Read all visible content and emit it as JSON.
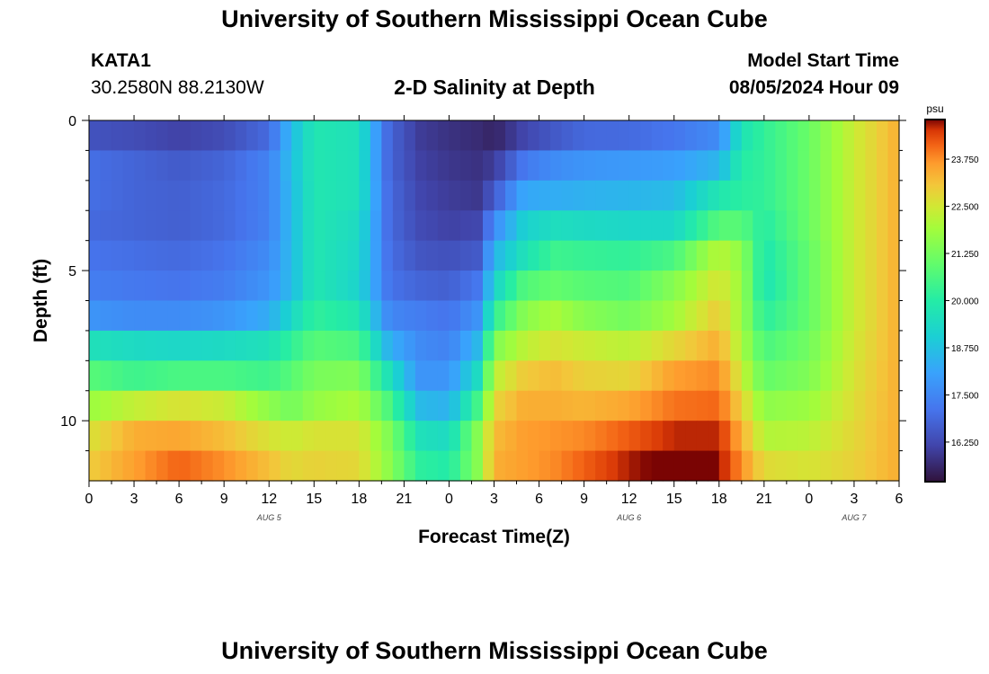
{
  "page": {
    "title": "University of Southern Mississippi Ocean Cube",
    "station": "KATA1",
    "coords": "30.2580N  88.2130W",
    "subtitle": "2-D Salinity at Depth",
    "model_start_label": "Model Start Time",
    "model_start_value": "08/05/2024 Hour 09",
    "bottom_title": "University of Southern Mississippi Ocean Cube"
  },
  "chart_data": {
    "type": "heatmap",
    "title": "2-D Salinity at Depth",
    "xlabel": "Forecast Time(Z)",
    "ylabel": "Depth (ft)",
    "x_tick_labels": [
      "0",
      "3",
      "6",
      "9",
      "12",
      "15",
      "18",
      "21",
      "0",
      "3",
      "6",
      "9",
      "12",
      "15",
      "18",
      "21",
      "0",
      "3",
      "6"
    ],
    "x_range_hours": [
      0,
      54
    ],
    "date_labels": [
      {
        "text": "AUG 5",
        "hour": 12
      },
      {
        "text": "AUG 6",
        "hour": 36
      },
      {
        "text": "AUG 7",
        "hour": 51
      }
    ],
    "y_tick_labels": [
      "0",
      "5",
      "10"
    ],
    "y_ticks": [
      0,
      5,
      10
    ],
    "y_range_ft": [
      0,
      12
    ],
    "colorbar": {
      "unit": "psu",
      "range": [
        15.2,
        24.8
      ],
      "tick_labels": [
        "23.750",
        "22.500",
        "21.250",
        "20.000",
        "18.750",
        "17.500",
        "16.250"
      ],
      "tick_values": [
        23.75,
        22.5,
        21.25,
        20.0,
        18.75,
        17.5,
        16.25
      ]
    },
    "depth_levels_ft": [
      0.5,
      1.5,
      2.5,
      3.5,
      4.5,
      5.5,
      6.5,
      7.5,
      8.5,
      9.5,
      10.5,
      11.5
    ],
    "key_hours": [
      0,
      3,
      6,
      9,
      12,
      13.5,
      15,
      18,
      20,
      22,
      24,
      26,
      27,
      29,
      31,
      33,
      36,
      39,
      42,
      43.5,
      45,
      48,
      51,
      54
    ],
    "salinity_psu_key": [
      [
        16.2,
        16.0,
        15.8,
        16.0,
        16.6,
        18.6,
        19.8,
        19.6,
        16.8,
        16.0,
        15.8,
        15.6,
        15.3,
        15.7,
        16.0,
        16.4,
        16.6,
        17.0,
        17.6,
        19.6,
        20.3,
        21.0,
        22.4,
        23.4
      ],
      [
        16.5,
        16.4,
        16.2,
        16.4,
        17.0,
        18.6,
        19.8,
        19.6,
        16.8,
        16.0,
        15.8,
        15.7,
        15.6,
        16.3,
        16.7,
        17.0,
        17.0,
        17.2,
        17.6,
        19.7,
        20.2,
        21.1,
        22.4,
        23.4
      ],
      [
        17.0,
        16.8,
        16.6,
        16.8,
        17.4,
        18.7,
        19.8,
        19.6,
        16.8,
        16.1,
        15.9,
        15.8,
        16.0,
        17.2,
        17.6,
        17.8,
        17.9,
        18.0,
        18.5,
        20.0,
        20.2,
        21.1,
        22.4,
        23.4
      ],
      [
        17.0,
        16.8,
        16.7,
        16.9,
        17.4,
        18.6,
        19.8,
        19.6,
        16.9,
        16.2,
        16.0,
        15.9,
        16.6,
        18.2,
        18.3,
        18.4,
        18.5,
        18.6,
        19.8,
        20.1,
        20.2,
        21.1,
        22.4,
        23.4
      ],
      [
        16.9,
        16.8,
        16.7,
        16.9,
        17.4,
        18.6,
        19.8,
        19.4,
        16.9,
        16.3,
        16.1,
        16.2,
        17.6,
        19.1,
        19.5,
        19.4,
        19.3,
        19.3,
        20.8,
        20.8,
        20.0,
        21.1,
        22.4,
        23.4
      ],
      [
        17.1,
        17.0,
        16.9,
        17.1,
        17.6,
        18.6,
        19.8,
        19.3,
        17.0,
        16.5,
        16.4,
        16.6,
        18.5,
        19.6,
        20.4,
        20.3,
        20.2,
        20.6,
        22.2,
        21.6,
        19.8,
        21.0,
        22.4,
        23.4
      ],
      [
        17.3,
        17.2,
        17.1,
        17.3,
        17.8,
        18.6,
        19.8,
        19.2,
        17.1,
        16.8,
        16.7,
        17.2,
        19.2,
        20.7,
        21.0,
        20.8,
        20.7,
        21.5,
        22.6,
        21.8,
        19.7,
        21.0,
        22.4,
        23.4
      ],
      [
        17.8,
        17.6,
        17.6,
        17.8,
        18.3,
        19.3,
        20.2,
        19.8,
        17.5,
        17.3,
        17.1,
        17.8,
        20.2,
        21.5,
        22.0,
        21.5,
        21.2,
        21.9,
        23.0,
        21.8,
        20.1,
        21.0,
        22.4,
        23.4
      ],
      [
        19.6,
        19.4,
        19.3,
        19.4,
        19.6,
        20.2,
        20.8,
        20.6,
        18.4,
        17.6,
        17.4,
        18.6,
        21.4,
        22.2,
        22.6,
        22.4,
        22.2,
        22.8,
        23.4,
        22.0,
        20.6,
        21.2,
        22.5,
        23.4
      ],
      [
        20.8,
        20.4,
        20.6,
        20.6,
        20.4,
        20.8,
        21.3,
        21.4,
        19.6,
        17.8,
        17.8,
        19.5,
        22.2,
        23.0,
        23.2,
        22.9,
        22.8,
        23.6,
        23.8,
        22.4,
        21.0,
        21.4,
        22.6,
        23.4
      ],
      [
        21.8,
        22.3,
        22.6,
        22.4,
        21.6,
        21.2,
        21.7,
        22.0,
        20.6,
        18.6,
        18.4,
        20.6,
        22.8,
        23.4,
        23.4,
        23.3,
        23.5,
        24.0,
        24.1,
        22.9,
        21.6,
        21.8,
        22.7,
        23.4
      ],
      [
        22.6,
        23.4,
        23.5,
        23.2,
        22.6,
        22.4,
        22.6,
        22.6,
        21.4,
        19.6,
        19.4,
        21.6,
        23.2,
        23.6,
        23.7,
        23.8,
        24.2,
        24.6,
        24.6,
        23.4,
        22.1,
        22.2,
        22.8,
        23.4
      ],
      [
        23.0,
        23.6,
        24.2,
        23.8,
        23.2,
        22.8,
        22.9,
        22.8,
        21.6,
        20.2,
        20.0,
        21.6,
        23.4,
        23.6,
        23.8,
        24.2,
        24.7,
        25.0,
        24.8,
        23.8,
        22.8,
        22.6,
        22.9,
        23.4
      ]
    ],
    "salinity_row_depths_ft": [
      0.1,
      0.6,
      1.5,
      2.5,
      3.5,
      4.5,
      5.5,
      6.5,
      7.5,
      8.5,
      9.5,
      10.5,
      11.6
    ]
  }
}
